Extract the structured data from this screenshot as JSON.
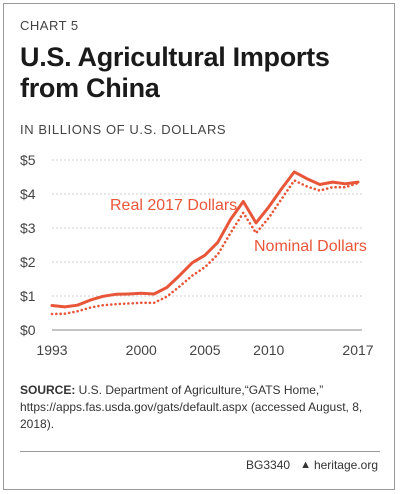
{
  "header": {
    "chart_number": "CHART 5",
    "title": "U.S. Agricultural Imports from China",
    "units": "IN BILLIONS OF U.S. DOLLARS"
  },
  "chart_data": {
    "type": "line",
    "title": "U.S. Agricultural Imports from China",
    "subtitle": "IN BILLIONS OF U.S. DOLLARS",
    "xlabel": "",
    "ylabel": "",
    "xlim": [
      1993,
      2017
    ],
    "ylim": [
      0,
      5
    ],
    "x_ticks": [
      1993,
      2000,
      2005,
      2010,
      2017
    ],
    "y_ticks": [
      0,
      1,
      2,
      3,
      4,
      5
    ],
    "y_tick_labels": [
      "$0",
      "$1",
      "$2",
      "$3",
      "$4",
      "$5"
    ],
    "grid": "horizontal",
    "color": "#e8563a",
    "x": [
      1993,
      1994,
      1995,
      1996,
      1997,
      1998,
      1999,
      2000,
      2001,
      2002,
      2003,
      2004,
      2005,
      2006,
      2007,
      2008,
      2009,
      2010,
      2011,
      2012,
      2013,
      2014,
      2015,
      2016,
      2017
    ],
    "series": [
      {
        "name": "Real 2017 Dollars",
        "style": "solid",
        "values": [
          0.72,
          0.68,
          0.73,
          0.88,
          0.99,
          1.05,
          1.06,
          1.08,
          1.06,
          1.25,
          1.6,
          1.98,
          2.2,
          2.58,
          3.25,
          3.78,
          3.15,
          3.62,
          4.15,
          4.65,
          4.45,
          4.28,
          4.35,
          4.3,
          4.35
        ]
      },
      {
        "name": "Nominal Dollars",
        "style": "dotted",
        "values": [
          0.47,
          0.48,
          0.55,
          0.66,
          0.73,
          0.76,
          0.78,
          0.8,
          0.8,
          0.98,
          1.28,
          1.6,
          1.85,
          2.22,
          2.85,
          3.45,
          2.85,
          3.3,
          3.85,
          4.4,
          4.22,
          4.1,
          4.2,
          4.2,
          4.32
        ]
      }
    ]
  },
  "source": {
    "label": "SOURCE:",
    "text": " U.S. Department of Agriculture,“GATS Home,” https://apps.fas.usda.gov/gats/default.aspx (accessed August, 8, 2018)."
  },
  "footer": {
    "code": "BG3340",
    "site": "heritage.org"
  }
}
